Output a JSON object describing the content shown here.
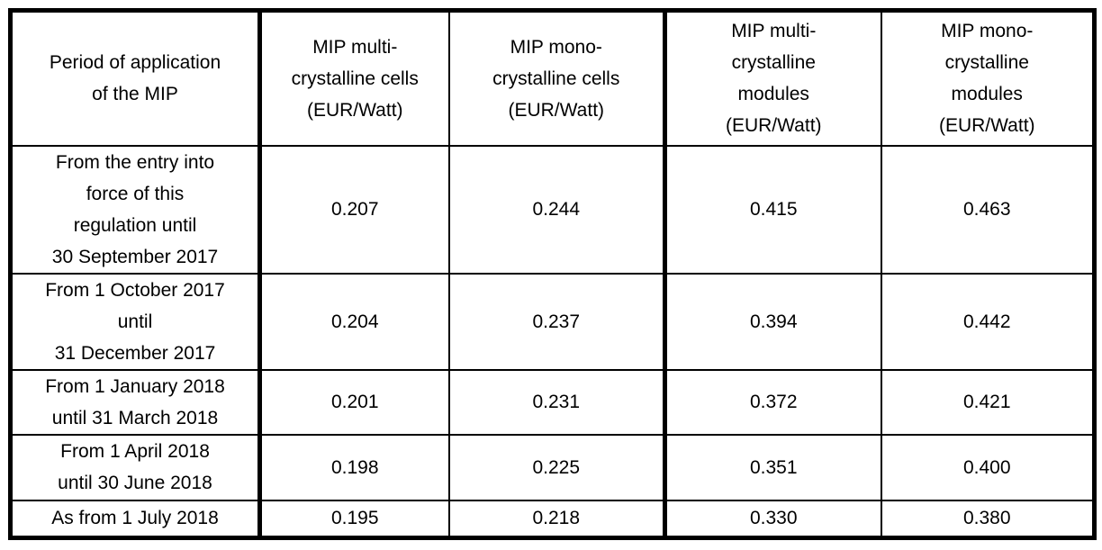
{
  "page": {
    "background_color": "#ffffff",
    "border_color": "#000000",
    "text_color": "#000000"
  },
  "table": {
    "title_semantic": "Minimum import price (MIP) schedule for crystalline silicon photovoltaic cells and modules",
    "columns": [
      {
        "label": "Period of application\nof the MIP"
      },
      {
        "label": "MIP multi-\ncrystalline cells\n(EUR/Watt)"
      },
      {
        "label": "MIP mono-\ncrystalline cells\n(EUR/Watt)"
      },
      {
        "label": "MIP multi-\ncrystalline\nmodules\n(EUR/Watt)"
      },
      {
        "label": "MIP mono-\ncrystalline\nmodules\n(EUR/Watt)"
      }
    ],
    "rows": [
      {
        "period": "From the entry into\nforce of this\nregulation until\n30 September 2017",
        "values": [
          "0.207",
          "0.244",
          "0.415",
          "0.463"
        ]
      },
      {
        "period": "From 1 October 2017\nuntil\n31 December 2017",
        "values": [
          "0.204",
          "0.237",
          "0.394",
          "0.442"
        ]
      },
      {
        "period": "From 1 January 2018\nuntil 31 March 2018",
        "values": [
          "0.201",
          "0.231",
          "0.372",
          "0.421"
        ]
      },
      {
        "period": "From 1 April 2018\nuntil 30 June 2018",
        "values": [
          "0.198",
          "0.225",
          "0.351",
          "0.400"
        ]
      },
      {
        "period": "As from 1 July 2018",
        "values": [
          "0.195",
          "0.218",
          "0.330",
          "0.380"
        ]
      }
    ]
  }
}
